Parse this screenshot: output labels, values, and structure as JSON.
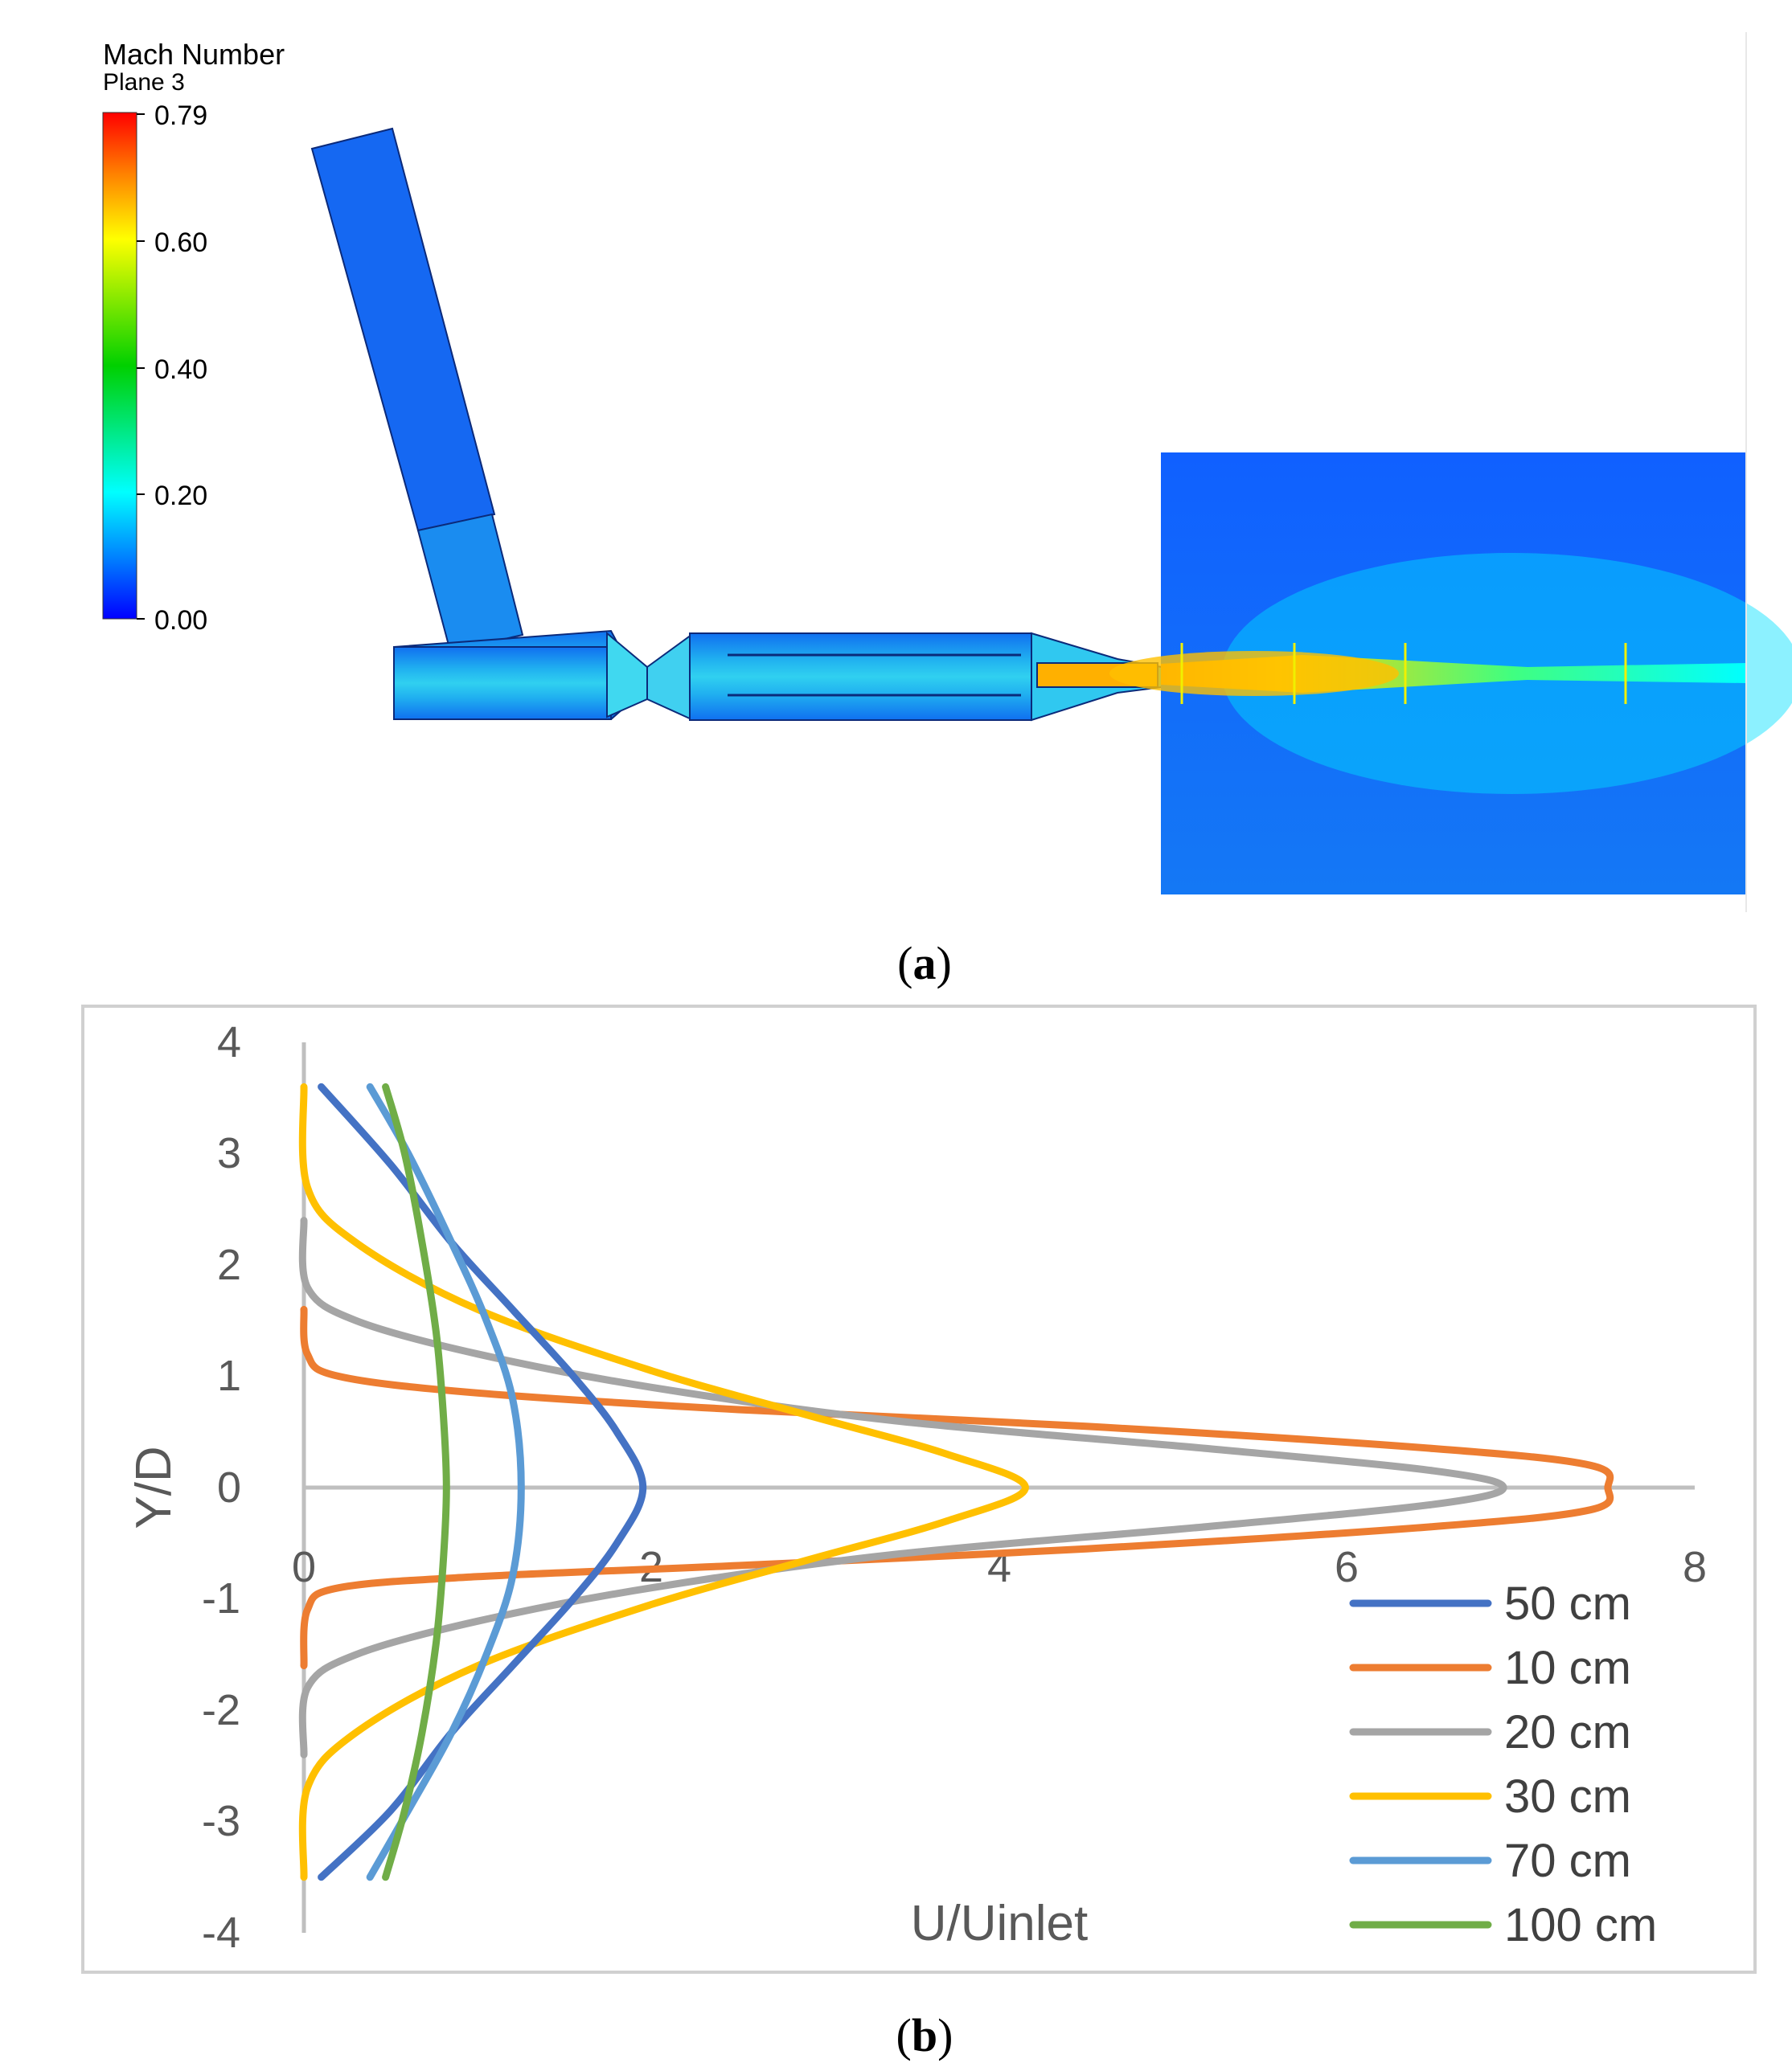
{
  "panel_a": {
    "colorbar": {
      "title": "Mach Number",
      "subtitle": "Plane 3",
      "ticks": [
        "0.79",
        "0.60",
        "0.40",
        "0.20",
        "0.00"
      ],
      "colors": [
        "#ff0000",
        "#ff8000",
        "#ffff00",
        "#00d000",
        "#00ffff",
        "#0080ff",
        "#0000ff"
      ]
    },
    "caption_open": "(",
    "caption_letter": "a",
    "caption_close": ")"
  },
  "panel_b": {
    "caption_open": "(",
    "caption_letter": "b",
    "caption_close": ")"
  },
  "chart_data": {
    "type": "line",
    "title": "",
    "xlabel": "U/Uinlet",
    "ylabel": "Y/D",
    "xlim": [
      0,
      8
    ],
    "ylim": [
      -4,
      4
    ],
    "xticks": [
      "0",
      "2",
      "4",
      "6",
      "8"
    ],
    "yticks": [
      "4",
      "3",
      "2",
      "1",
      "0",
      "-1",
      "-2",
      "-3",
      "-4"
    ],
    "legend_position": "bottom-right",
    "series": [
      {
        "name": "50 cm",
        "color": "#4472c4",
        "points": [
          [
            0.1,
            3.6
          ],
          [
            0.5,
            2.9
          ],
          [
            0.85,
            2.2
          ],
          [
            1.2,
            1.6
          ],
          [
            1.55,
            1.0
          ],
          [
            1.8,
            0.5
          ],
          [
            1.95,
            0.0
          ],
          [
            1.8,
            -0.5
          ],
          [
            1.55,
            -1.0
          ],
          [
            1.2,
            -1.6
          ],
          [
            0.85,
            -2.2
          ],
          [
            0.5,
            -2.9
          ],
          [
            0.1,
            -3.5
          ]
        ]
      },
      {
        "name": "10 cm",
        "color": "#ed7d31",
        "points": [
          [
            0.0,
            1.6
          ],
          [
            0.02,
            1.2
          ],
          [
            0.2,
            1.0
          ],
          [
            1.0,
            0.85
          ],
          [
            2.5,
            0.7
          ],
          [
            4.5,
            0.55
          ],
          [
            6.5,
            0.35
          ],
          [
            7.4,
            0.2
          ],
          [
            7.5,
            0.0
          ],
          [
            7.4,
            -0.2
          ],
          [
            6.5,
            -0.35
          ],
          [
            4.5,
            -0.55
          ],
          [
            2.5,
            -0.7
          ],
          [
            1.0,
            -0.8
          ],
          [
            0.2,
            -0.9
          ],
          [
            0.02,
            -1.1
          ],
          [
            0.0,
            -1.6
          ]
        ]
      },
      {
        "name": "20 cm",
        "color": "#a5a5a5",
        "points": [
          [
            0.0,
            2.4
          ],
          [
            0.02,
            1.8
          ],
          [
            0.3,
            1.5
          ],
          [
            1.0,
            1.2
          ],
          [
            2.0,
            0.9
          ],
          [
            3.4,
            0.6
          ],
          [
            5.2,
            0.35
          ],
          [
            6.5,
            0.15
          ],
          [
            6.9,
            0.0
          ],
          [
            6.5,
            -0.15
          ],
          [
            5.2,
            -0.35
          ],
          [
            3.4,
            -0.6
          ],
          [
            2.0,
            -0.9
          ],
          [
            1.0,
            -1.2
          ],
          [
            0.3,
            -1.5
          ],
          [
            0.02,
            -1.8
          ],
          [
            0.0,
            -2.4
          ]
        ]
      },
      {
        "name": "30 cm",
        "color": "#ffc000",
        "points": [
          [
            0.0,
            3.6
          ],
          [
            0.02,
            2.7
          ],
          [
            0.3,
            2.2
          ],
          [
            1.0,
            1.6
          ],
          [
            2.0,
            1.05
          ],
          [
            2.9,
            0.65
          ],
          [
            3.7,
            0.3
          ],
          [
            4.15,
            0.0
          ],
          [
            3.7,
            -0.3
          ],
          [
            2.9,
            -0.65
          ],
          [
            2.0,
            -1.05
          ],
          [
            1.0,
            -1.6
          ],
          [
            0.3,
            -2.2
          ],
          [
            0.02,
            -2.7
          ],
          [
            0.0,
            -3.5
          ]
        ]
      },
      {
        "name": "70 cm",
        "color": "#5b9bd5",
        "points": [
          [
            0.38,
            3.6
          ],
          [
            0.6,
            3.0
          ],
          [
            0.85,
            2.2
          ],
          [
            1.05,
            1.5
          ],
          [
            1.2,
            0.8
          ],
          [
            1.25,
            0.0
          ],
          [
            1.2,
            -0.8
          ],
          [
            1.05,
            -1.5
          ],
          [
            0.85,
            -2.2
          ],
          [
            0.6,
            -2.9
          ],
          [
            0.38,
            -3.5
          ]
        ]
      },
      {
        "name": "100 cm",
        "color": "#70ad47",
        "points": [
          [
            0.47,
            3.6
          ],
          [
            0.58,
            3.0
          ],
          [
            0.68,
            2.2
          ],
          [
            0.76,
            1.4
          ],
          [
            0.8,
            0.7
          ],
          [
            0.82,
            0.0
          ],
          [
            0.8,
            -0.7
          ],
          [
            0.76,
            -1.4
          ],
          [
            0.68,
            -2.2
          ],
          [
            0.58,
            -2.9
          ],
          [
            0.47,
            -3.5
          ]
        ]
      }
    ]
  }
}
